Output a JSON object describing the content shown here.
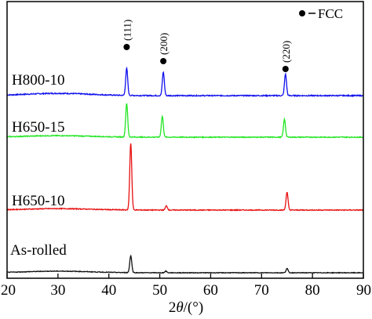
{
  "chart_data": {
    "type": "line",
    "xlabel_parts": {
      "pre": "2",
      "var": "θ",
      "post": "/(°)"
    },
    "xlim": [
      20,
      90
    ],
    "x_ticks": [
      20,
      30,
      40,
      50,
      60,
      70,
      80,
      90
    ],
    "x_tick_labels": [
      "20",
      "30",
      "40",
      "50",
      "60",
      "70",
      "80",
      "90"
    ],
    "legend": {
      "marker": "filled-circle",
      "label": "FCC",
      "placement": "top-right"
    },
    "peak_annotations": [
      {
        "label": "(111)",
        "x": 43.5
      },
      {
        "label": "(200)",
        "x": 50.7
      },
      {
        "label": "(220)",
        "x": 74.7
      }
    ],
    "series": [
      {
        "name": "H800-10",
        "color": "#1010ee",
        "baseline": 0.84,
        "bump": 0.025,
        "peaks": [
          {
            "x": 43.5,
            "h": 0.3
          },
          {
            "x": 50.7,
            "h": 0.26
          },
          {
            "x": 74.7,
            "h": 0.24
          }
        ]
      },
      {
        "name": "H650-15",
        "color": "#22e622",
        "baseline": 0.585,
        "bump": 0.02,
        "peaks": [
          {
            "x": 43.5,
            "h": 0.45
          },
          {
            "x": 50.5,
            "h": 0.28
          },
          {
            "x": 74.5,
            "h": 0.24
          }
        ]
      },
      {
        "name": "H650-10",
        "color": "#e81010",
        "baseline": 0.3,
        "bump": 0.02,
        "peaks": [
          {
            "x": 44.3,
            "h": 0.95
          },
          {
            "x": 51.3,
            "h": 0.06
          },
          {
            "x": 75.0,
            "h": 0.25
          }
        ]
      },
      {
        "name": "As-rolled",
        "color": "#111111",
        "baseline": 0.04,
        "bump": 0.03,
        "peaks": [
          {
            "x": 44.3,
            "h": 0.32
          },
          {
            "x": 51.2,
            "h": 0.03
          },
          {
            "x": 75.0,
            "h": 0.08
          }
        ]
      }
    ]
  }
}
